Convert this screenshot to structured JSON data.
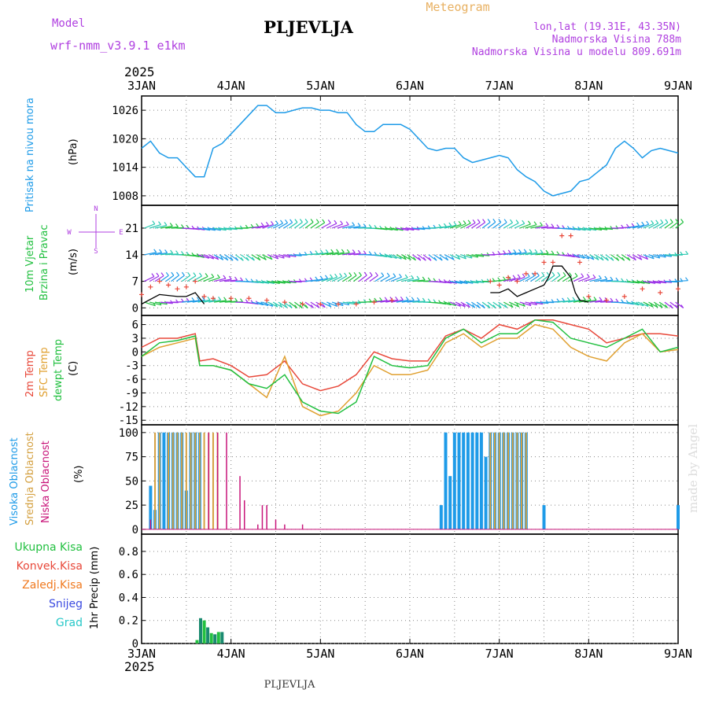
{
  "header": {
    "model_label": "Model",
    "model_name": "wrf-nmm_v3.9.1 e1km",
    "title": "PLJEVLJA",
    "meteogram_label": "Meteogram",
    "coords": "lon,lat (19.31E, 43.35N)",
    "elevation": "Nadmorska Visina 788m",
    "model_elevation": "Nadmorska Visina u modelu 809.691m",
    "year_top": "2025",
    "year_bottom": "2025",
    "footer_title": "PLJEVLJA",
    "watermark": "made by Angel"
  },
  "colors": {
    "pressure": "#1e9be8",
    "wind_speed": "#000000",
    "wind_gust": "#e8483a",
    "t2m": "#e8483a",
    "tsfc": "#e0a030",
    "dewpt": "#22c040",
    "high_cloud": "#1e9be8",
    "mid_cloud": "#d4a040",
    "low_cloud": "#c8157a",
    "ukupna": "#22c040",
    "konvek": "#e8483a",
    "zaledj": "#f07a20",
    "snijeg": "#3b4ae0",
    "grad": "#28c8c8",
    "purple_label": "#b040e0",
    "grid": "#888888"
  },
  "x_axis": {
    "day_labels": [
      "3JAN",
      "4JAN",
      "5JAN",
      "6JAN",
      "7JAN",
      "8JAN",
      "9JAN"
    ],
    "start_day": 3,
    "end_day": 9
  },
  "panels": {
    "pressure": {
      "label": "Pritisak na nivou mora",
      "unit": "(hPa)"
    },
    "wind": {
      "label": "10m Vjetar",
      "label2": "Brzina i Pravac",
      "unit": "(m/s)",
      "compass_n": "N",
      "compass_e": "E",
      "compass_w": "W",
      "compass_s": "S"
    },
    "temp": {
      "label1": "2m Temp",
      "label2": "SFC Temp",
      "label3": "dewpt Temp",
      "unit": "(C)"
    },
    "cloud": {
      "label1": "Visoka Oblacnost",
      "label2": "Srednja Oblacnost",
      "label3": "Niska Oblacnost",
      "unit": "(%)"
    },
    "precip": {
      "legend": [
        "Ukupna Kisa",
        "Konvek.Kisa",
        "Zaledj.Kisa",
        "Snijeg",
        "Grad"
      ],
      "unit": "1hr Precip (mm)"
    }
  },
  "chart_data": [
    {
      "type": "line",
      "name": "pressure",
      "ylim": [
        1006,
        1029
      ],
      "yticks": [
        1008,
        1014,
        1020,
        1026
      ],
      "x": [
        3.0,
        3.1,
        3.2,
        3.3,
        3.4,
        3.5,
        3.6,
        3.7,
        3.8,
        3.9,
        4.0,
        4.1,
        4.2,
        4.3,
        4.4,
        4.5,
        4.6,
        4.7,
        4.8,
        4.9,
        5.0,
        5.1,
        5.2,
        5.3,
        5.4,
        5.5,
        5.6,
        5.7,
        5.8,
        5.9,
        6.0,
        6.1,
        6.2,
        6.3,
        6.4,
        6.5,
        6.6,
        6.7,
        6.8,
        6.9,
        7.0,
        7.1,
        7.2,
        7.3,
        7.4,
        7.5,
        7.6,
        7.7,
        7.8,
        7.9,
        8.0,
        8.1,
        8.2,
        8.3,
        8.4,
        8.5,
        8.6,
        8.7,
        8.8,
        8.9,
        9.0
      ],
      "y": [
        1018,
        1019.5,
        1017,
        1016,
        1016,
        1014,
        1012,
        1012,
        1018,
        1019,
        1021,
        1023,
        1025,
        1027,
        1027,
        1025.5,
        1025.5,
        1026,
        1026.5,
        1026.5,
        1026,
        1026,
        1025.5,
        1025.5,
        1023,
        1021.5,
        1021.5,
        1023,
        1023,
        1023,
        1022,
        1020,
        1018,
        1017.5,
        1018,
        1018,
        1016,
        1015,
        1015.5,
        1016,
        1016.5,
        1016,
        1013.5,
        1012,
        1011,
        1009,
        1008,
        1008.5,
        1009,
        1011,
        1011.5,
        1013,
        1014.5,
        1018,
        1019.5,
        1018,
        1016,
        1017.5,
        1018,
        1017.5,
        1017
      ]
    },
    {
      "type": "line",
      "name": "wind",
      "ylim": [
        -2,
        27
      ],
      "yticks": [
        0,
        7,
        14,
        21
      ],
      "series": [
        {
          "name": "speed",
          "x": [
            3.0,
            3.2,
            3.4,
            3.5,
            3.6,
            3.7,
            6.9,
            7.0,
            7.1,
            7.2,
            7.3,
            7.4,
            7.5,
            7.55,
            7.6,
            7.7,
            7.8,
            7.85,
            7.9,
            8.0
          ],
          "y": [
            1,
            3.5,
            3,
            3,
            4,
            1,
            4,
            4,
            5,
            3,
            4,
            5,
            6,
            8,
            11,
            11,
            8,
            4,
            2,
            1.5
          ]
        },
        {
          "name": "gust",
          "x": [
            3.0,
            3.1,
            3.2,
            3.3,
            3.4,
            3.5,
            3.6,
            3.7,
            3.8,
            4.0,
            4.2,
            4.4,
            4.6,
            4.8,
            5.0,
            5.2,
            5.4,
            5.6,
            5.8,
            6.9,
            7.0,
            7.1,
            7.2,
            7.3,
            7.4,
            7.5,
            7.6,
            7.7,
            7.8,
            7.9,
            8.0,
            8.2,
            8.4,
            8.6,
            8.8,
            9.0
          ],
          "y": [
            3.5,
            5.5,
            7,
            6,
            5,
            5.5,
            7,
            3,
            2.5,
            2.5,
            2.5,
            2,
            1.5,
            1,
            1,
            1,
            1,
            1.5,
            2,
            7,
            6,
            8,
            7,
            9,
            9,
            12,
            12,
            19,
            19,
            12,
            3,
            2,
            3,
            5,
            4,
            5
          ]
        }
      ],
      "barb_rows": [
        1.5,
        7,
        14,
        21
      ]
    },
    {
      "type": "line",
      "name": "temp",
      "ylim": [
        -16,
        8
      ],
      "yticks": [
        -15,
        -12,
        -9,
        -6,
        -3,
        0,
        3,
        6
      ],
      "x": [
        3.0,
        3.2,
        3.4,
        3.6,
        3.65,
        3.8,
        4.0,
        4.2,
        4.4,
        4.6,
        4.8,
        5.0,
        5.2,
        5.4,
        5.6,
        5.8,
        6.0,
        6.2,
        6.4,
        6.6,
        6.8,
        7.0,
        7.2,
        7.4,
        7.6,
        7.8,
        8.0,
        8.2,
        8.4,
        8.6,
        8.8,
        9.0
      ],
      "series": [
        {
          "name": "2m",
          "y": [
            1,
            3,
            3,
            4,
            -2,
            -1.5,
            -3,
            -5.5,
            -5,
            -2,
            -7,
            -8.5,
            -7.5,
            -5,
            0,
            -1.5,
            -2,
            -2,
            3.5,
            5,
            3,
            6,
            5,
            7,
            7,
            6,
            5,
            2,
            3,
            4,
            4,
            3.5
          ]
        },
        {
          "name": "sfc",
          "y": [
            -1,
            1,
            2,
            3,
            -3,
            -3,
            -4,
            -7,
            -10,
            -1,
            -12,
            -14,
            -13,
            -9,
            -3,
            -5,
            -5,
            -4,
            2,
            4,
            1,
            3,
            3,
            6,
            5,
            1,
            -1,
            -2,
            2,
            4,
            0,
            0.5
          ]
        },
        {
          "name": "dewpt",
          "y": [
            -1,
            2,
            2.5,
            3.5,
            -3,
            -3,
            -4,
            -7,
            -8,
            -5,
            -11,
            -13,
            -13.5,
            -11,
            -1,
            -3,
            -3.5,
            -3,
            3,
            5,
            2,
            4,
            4,
            7,
            6.5,
            3,
            2,
            1,
            3,
            5,
            0,
            1
          ]
        }
      ]
    },
    {
      "type": "bar",
      "name": "cloud",
      "ylim": [
        -5,
        108
      ],
      "yticks": [
        0,
        25,
        50,
        75,
        100
      ],
      "high": {
        "x": [
          3.1,
          3.15,
          3.2,
          3.25,
          3.3,
          3.35,
          3.4,
          3.45,
          3.5,
          3.55,
          3.6,
          3.65,
          6.35,
          6.4,
          6.45,
          6.5,
          6.55,
          6.6,
          6.65,
          6.7,
          6.75,
          6.8,
          6.85,
          6.9,
          6.95,
          7.0,
          7.05,
          7.1,
          7.15,
          7.2,
          7.25,
          7.3,
          7.5,
          9.0
        ],
        "y": [
          45,
          20,
          100,
          100,
          100,
          100,
          100,
          100,
          40,
          100,
          100,
          100,
          25,
          100,
          55,
          100,
          100,
          100,
          100,
          100,
          100,
          100,
          75,
          100,
          100,
          100,
          100,
          100,
          100,
          100,
          100,
          100,
          25,
          25
        ]
      },
      "mid": {
        "x": [
          3.15,
          3.2,
          3.3,
          3.35,
          3.4,
          3.45,
          3.5,
          3.55,
          3.6,
          3.65,
          3.7,
          3.75,
          3.8,
          3.85,
          6.9,
          6.95,
          7.0,
          7.05,
          7.1,
          7.15,
          7.2,
          7.25,
          7.3
        ],
        "y": [
          100,
          100,
          100,
          100,
          100,
          100,
          100,
          100,
          100,
          100,
          100,
          100,
          100,
          100,
          100,
          100,
          100,
          100,
          100,
          100,
          100,
          100,
          100
        ]
      },
      "low": {
        "x": [
          3.1,
          3.75,
          3.85,
          3.95,
          4.1,
          4.15,
          4.3,
          4.35,
          4.4,
          4.5,
          4.6,
          4.8
        ],
        "y": [
          10,
          100,
          100,
          100,
          55,
          30,
          5,
          25,
          25,
          10,
          5,
          5
        ]
      }
    },
    {
      "type": "bar",
      "name": "precip",
      "ylim": [
        0,
        0.95
      ],
      "yticks": [
        0,
        0.2,
        0.4,
        0.6,
        0.8
      ],
      "ukupna": {
        "x": [
          3.62,
          3.66,
          3.7,
          3.74,
          3.78,
          3.82,
          3.86,
          3.9
        ],
        "y": [
          0.03,
          0.22,
          0.2,
          0.14,
          0.09,
          0.08,
          0.1,
          0.1
        ]
      }
    }
  ]
}
